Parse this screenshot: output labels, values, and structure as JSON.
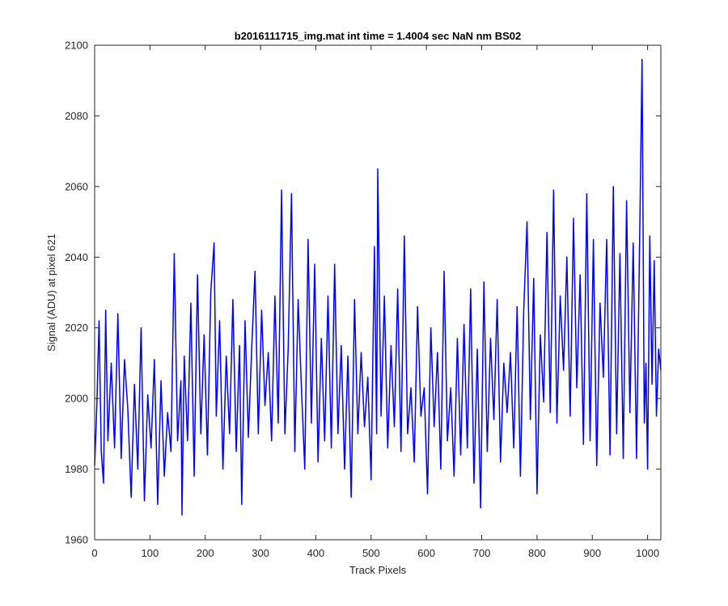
{
  "chart_data": {
    "type": "line",
    "title": "b2016111715_img.mat int time = 1.4004 sec  NaN nm BS02",
    "xlabel": "Track Pixels",
    "ylabel": "Signal (ADU) at pixel 621",
    "xlim": [
      0,
      1024
    ],
    "ylim": [
      1960,
      2100
    ],
    "xticks": [
      0,
      100,
      200,
      300,
      400,
      500,
      600,
      700,
      800,
      900,
      1000
    ],
    "yticks": [
      1960,
      1980,
      2000,
      2020,
      2040,
      2060,
      2080,
      2100
    ],
    "grid": false,
    "legend": "none",
    "line_color": "#0000ff",
    "axis_color": "#262626",
    "series": [
      {
        "x": [
          0,
          4,
          8,
          12,
          16,
          20,
          24,
          30,
          36,
          42,
          48,
          54,
          60,
          66,
          72,
          78,
          84,
          90,
          96,
          102,
          108,
          114,
          120,
          126,
          132,
          138,
          144,
          150,
          156,
          158,
          162,
          168,
          174,
          180,
          186,
          192,
          198,
          204,
          210,
          216,
          220,
          226,
          232,
          238,
          244,
          250,
          256,
          262,
          266,
          272,
          278,
          284,
          290,
          296,
          302,
          308,
          314,
          320,
          326,
          332,
          338,
          344,
          350,
          356,
          362,
          368,
          374,
          380,
          386,
          392,
          398,
          404,
          410,
          416,
          422,
          428,
          434,
          440,
          446,
          452,
          458,
          464,
          470,
          476,
          482,
          488,
          494,
          500,
          506,
          510,
          512,
          518,
          524,
          530,
          536,
          542,
          548,
          554,
          560,
          566,
          572,
          578,
          584,
          590,
          596,
          602,
          608,
          614,
          620,
          626,
          632,
          638,
          644,
          650,
          656,
          662,
          668,
          674,
          680,
          686,
          692,
          698,
          704,
          710,
          716,
          722,
          728,
          734,
          740,
          746,
          752,
          758,
          764,
          770,
          776,
          782,
          788,
          794,
          800,
          806,
          812,
          818,
          824,
          830,
          836,
          842,
          848,
          854,
          860,
          866,
          872,
          878,
          884,
          890,
          896,
          902,
          908,
          914,
          920,
          926,
          932,
          938,
          944,
          950,
          956,
          962,
          968,
          974,
          980,
          986,
          990,
          994,
          997,
          1000,
          1004,
          1008,
          1012,
          1016,
          1020,
          1024
        ],
        "y": [
          1981,
          1998,
          2022,
          1985,
          1976,
          2025,
          1988,
          2010,
          1986,
          2024,
          1983,
          2011,
          1997,
          1972,
          2004,
          1980,
          2020,
          1971,
          2001,
          1986,
          2011,
          1970,
          2005,
          1978,
          1996,
          1985,
          2041,
          1988,
          2005,
          1967,
          2012,
          1988,
          2027,
          1978,
          2035,
          1990,
          2018,
          1984,
          2030,
          2044,
          1995,
          2022,
          1980,
          2012,
          1990,
          2028,
          1985,
          2015,
          1970,
          2022,
          1989,
          2014,
          2036,
          1990,
          2025,
          1998,
          2013,
          1988,
          2029,
          1993,
          2059,
          1990,
          2014,
          2058,
          1985,
          2028,
          2003,
          1980,
          2045,
          1993,
          2038,
          1982,
          2017,
          1988,
          2029,
          1986,
          2038,
          1990,
          2015,
          1980,
          2012,
          1972,
          2028,
          1990,
          2013,
          1992,
          2006,
          1977,
          2043,
          1990,
          2065,
          1995,
          2029,
          1986,
          2015,
          1992,
          2031,
          1985,
          2046,
          1990,
          2003,
          1982,
          2026,
          1995,
          2003,
          1973,
          2020,
          1992,
          2013,
          1980,
          2036,
          1988,
          2003,
          1978,
          2017,
          1984,
          2021,
          1986,
          2031,
          1976,
          2014,
          1969,
          2033,
          1985,
          2017,
          1994,
          2028,
          1982,
          2010,
          1996,
          2013,
          1986,
          2026,
          1978,
          2025,
          2050,
          1994,
          2034,
          1973,
          2018,
          1999,
          2047,
          1996,
          2059,
          1993,
          2029,
          2008,
          2040,
          1995,
          2051,
          2003,
          2035,
          1987,
          2058,
          1988,
          2045,
          1981,
          2027,
          2006,
          2045,
          1984,
          2060,
          1990,
          2041,
          1983,
          2056,
          1996,
          2044,
          1983,
          2049,
          2096,
          1993,
          2010,
          1980,
          2046,
          2004,
          2039,
          1995,
          2014,
          2008
        ]
      }
    ]
  }
}
